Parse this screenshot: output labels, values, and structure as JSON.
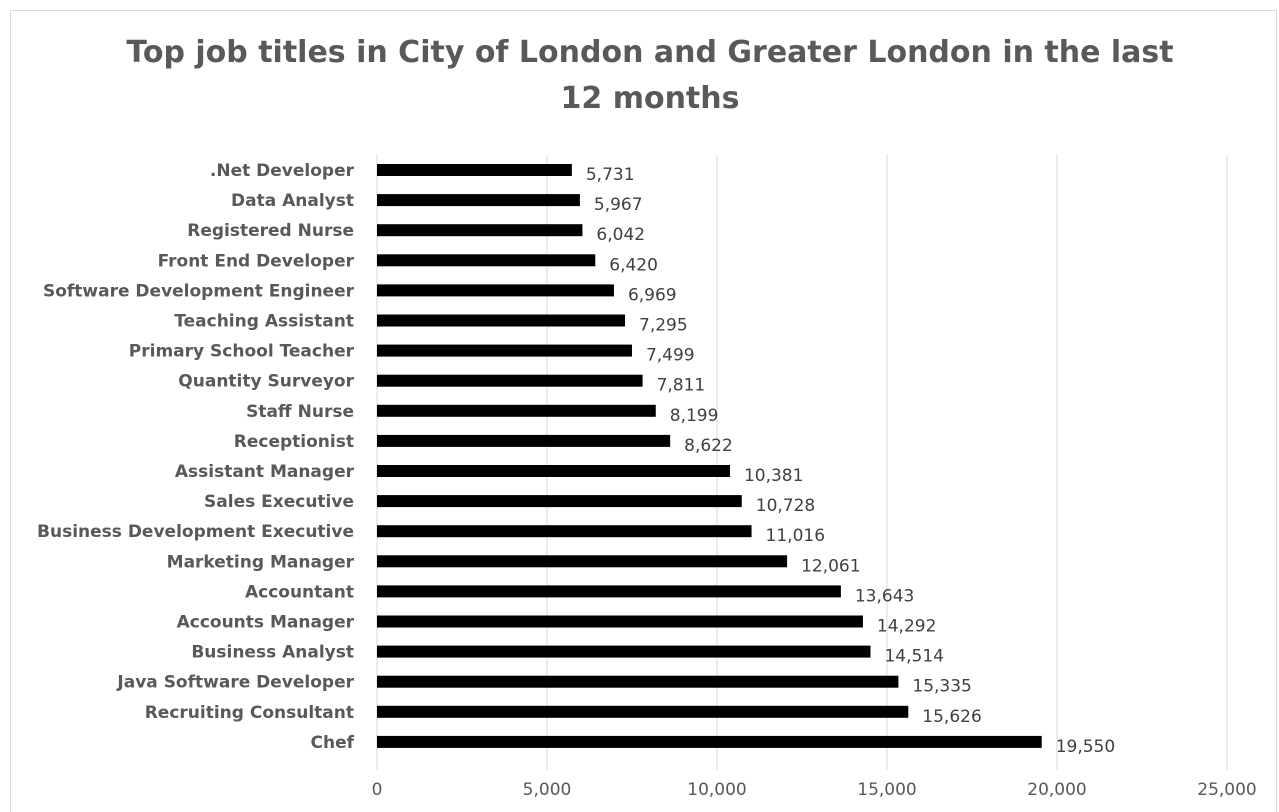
{
  "chart_data": {
    "type": "bar",
    "orientation": "horizontal",
    "title": "Top job titles in City of London and Greater London in the last 12 months",
    "categories": [
      ".Net Developer",
      "Data Analyst",
      "Registered Nurse",
      "Front End Developer",
      "Software Development Engineer",
      "Teaching Assistant",
      "Primary School Teacher",
      "Quantity Surveyor",
      "Staff Nurse",
      "Receptionist",
      "Assistant Manager",
      "Sales Executive",
      "Business Development Executive",
      "Marketing Manager",
      "Accountant",
      "Accounts Manager",
      "Business Analyst",
      "Java Software Developer",
      "Recruiting Consultant",
      "Chef"
    ],
    "values": [
      5731,
      5967,
      6042,
      6420,
      6969,
      7295,
      7499,
      7811,
      8199,
      8622,
      10381,
      10728,
      11016,
      12061,
      13643,
      14292,
      14514,
      15335,
      15626,
      19550
    ],
    "value_labels": [
      "5,731",
      "5,967",
      "6,042",
      "6,420",
      "6,969",
      "7,295",
      "7,499",
      "7,811",
      "8,199",
      "8,622",
      "10,381",
      "10,728",
      "11,016",
      "12,061",
      "13,643",
      "14,292",
      "14,514",
      "15,335",
      "15,626",
      "19,550"
    ],
    "xlim": [
      0,
      25000
    ],
    "xticks": [
      0,
      5000,
      10000,
      15000,
      20000,
      25000
    ],
    "xtick_labels": [
      "0",
      "5,000",
      "10,000",
      "15,000",
      "20,000",
      "25,000"
    ],
    "xlabel": "",
    "ylabel": "",
    "grid": "vertical",
    "legend": "none",
    "colors": {
      "bar": "#000000",
      "grid": "#d9d9d9",
      "text": "#595959"
    }
  }
}
